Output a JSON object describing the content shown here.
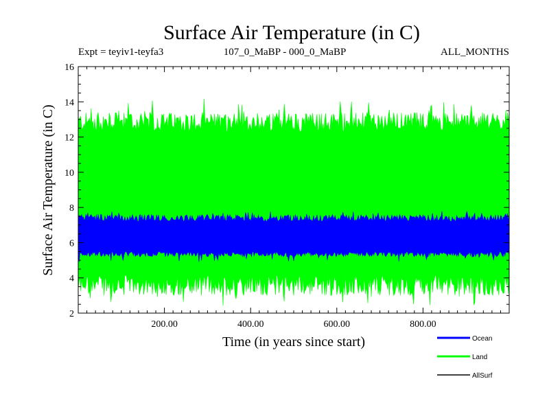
{
  "chart_data": {
    "type": "line",
    "title": "Surface Air Temperature (in C)",
    "subtitle_left": "Expt = teyiv1-teyfa3",
    "subtitle_center": "107_0_MaBP - 000_0_MaBP",
    "subtitle_right": "ALL_MONTHS",
    "xlabel": "Time (in years since start)",
    "ylabel": "Surface Air Temperature (in C)",
    "xlim": [
      0,
      1000
    ],
    "ylim": [
      2,
      16
    ],
    "xticks": [
      200,
      400,
      600,
      800
    ],
    "xtick_labels": [
      "200.00",
      "400.00",
      "600.00",
      "800.00"
    ],
    "yticks": [
      2,
      4,
      6,
      8,
      10,
      12,
      14,
      16
    ],
    "ytick_labels": [
      "2",
      "4",
      "6",
      "8",
      "10",
      "12",
      "14",
      "16"
    ],
    "series": [
      {
        "name": "Land",
        "color": "#00ff00",
        "style": "seasonal-band",
        "band_min_typical": [
          3.0,
          4.2
        ],
        "band_max_typical": [
          12.3,
          13.4
        ],
        "observed_min": 2.4,
        "observed_max": 14.2
      },
      {
        "name": "Ocean",
        "color": "#0000ff",
        "style": "seasonal-band",
        "band_min_typical": [
          5.2,
          5.5
        ],
        "band_max_typical": [
          7.2,
          7.6
        ],
        "observed_min": 4.9,
        "observed_max": 7.8
      },
      {
        "name": "AllSurf",
        "color": "#000000",
        "style": "line"
      }
    ],
    "legend": [
      {
        "label": "Ocean",
        "color": "#0000ff"
      },
      {
        "label": "Land",
        "color": "#00ff00"
      },
      {
        "label": "AllSurf",
        "color": "#000000"
      }
    ]
  }
}
